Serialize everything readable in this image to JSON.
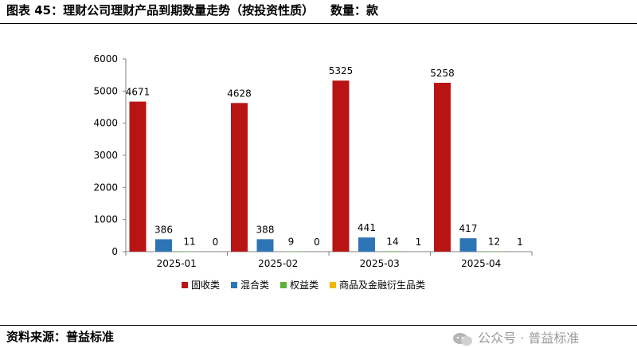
{
  "header": {
    "title": "图表 45：理财公司理财产品到期数量走势（按投资性质）",
    "unit": "数量：款"
  },
  "footer": {
    "source": "资料来源：普益标准"
  },
  "watermark": {
    "text": "公众号 · 普益标准"
  },
  "chart_data": {
    "type": "bar",
    "categories": [
      "2025-01",
      "2025-02",
      "2025-03",
      "2025-04"
    ],
    "series": [
      {
        "name": "固收类",
        "values": [
          4671,
          4628,
          5325,
          5258
        ],
        "color": "#B81414"
      },
      {
        "name": "混合类",
        "values": [
          386,
          388,
          441,
          417
        ],
        "color": "#2E75B6"
      },
      {
        "name": "权益类",
        "values": [
          11,
          9,
          14,
          12
        ],
        "color": "#5CB13C"
      },
      {
        "name": "商品及金融衍生品类",
        "values": [
          0,
          0,
          1,
          1
        ],
        "color": "#F2B800"
      }
    ],
    "ylim": [
      0,
      6000
    ],
    "yticks": [
      0,
      1000,
      2000,
      3000,
      4000,
      5000,
      6000
    ],
    "legend_position": "bottom",
    "grid": false
  }
}
